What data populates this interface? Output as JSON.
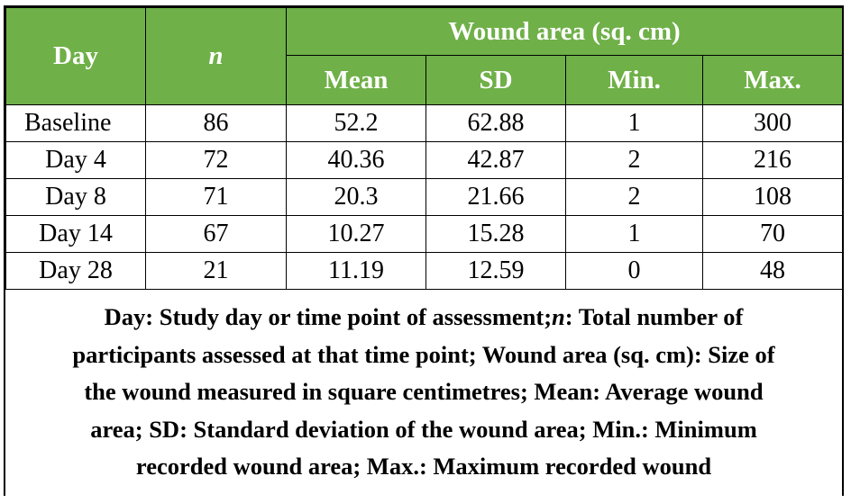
{
  "table": {
    "header": {
      "day": "Day",
      "n": "n",
      "group": "Wound area (sq. cm)",
      "mean": "Mean",
      "sd": "SD",
      "min": "Min.",
      "max": "Max."
    },
    "rows": [
      {
        "day": "Baseline",
        "n": "86",
        "mean": "52.2",
        "sd": "62.88",
        "min": "1",
        "max": "300"
      },
      {
        "day": "Day 4",
        "n": "72",
        "mean": "40.36",
        "sd": "42.87",
        "min": "2",
        "max": "216"
      },
      {
        "day": "Day 8",
        "n": "71",
        "mean": "20.3",
        "sd": "21.66",
        "min": "2",
        "max": "108"
      },
      {
        "day": "Day 14",
        "n": "67",
        "mean": "10.27",
        "sd": "15.28",
        "min": "1",
        "max": "70"
      },
      {
        "day": "Day 28",
        "n": "21",
        "mean": "11.19",
        "sd": "12.59",
        "min": "0",
        "max": "48"
      }
    ]
  },
  "caption": {
    "line1_a": "Day: Study day or time point of assessment;",
    "line1_n": "n",
    "line1_b": ": Total number of",
    "line2": "participants assessed at that time point; Wound area (sq. cm): Size of",
    "line3": "the wound measured in square centimetres; Mean: Average wound",
    "line4": "area; SD: Standard deviation of the wound area; Min.: Minimum",
    "line5": "recorded wound area; Max.: Maximum recorded wound"
  },
  "colors": {
    "header_bg": "#6fb048",
    "header_text": "#ffffff"
  }
}
